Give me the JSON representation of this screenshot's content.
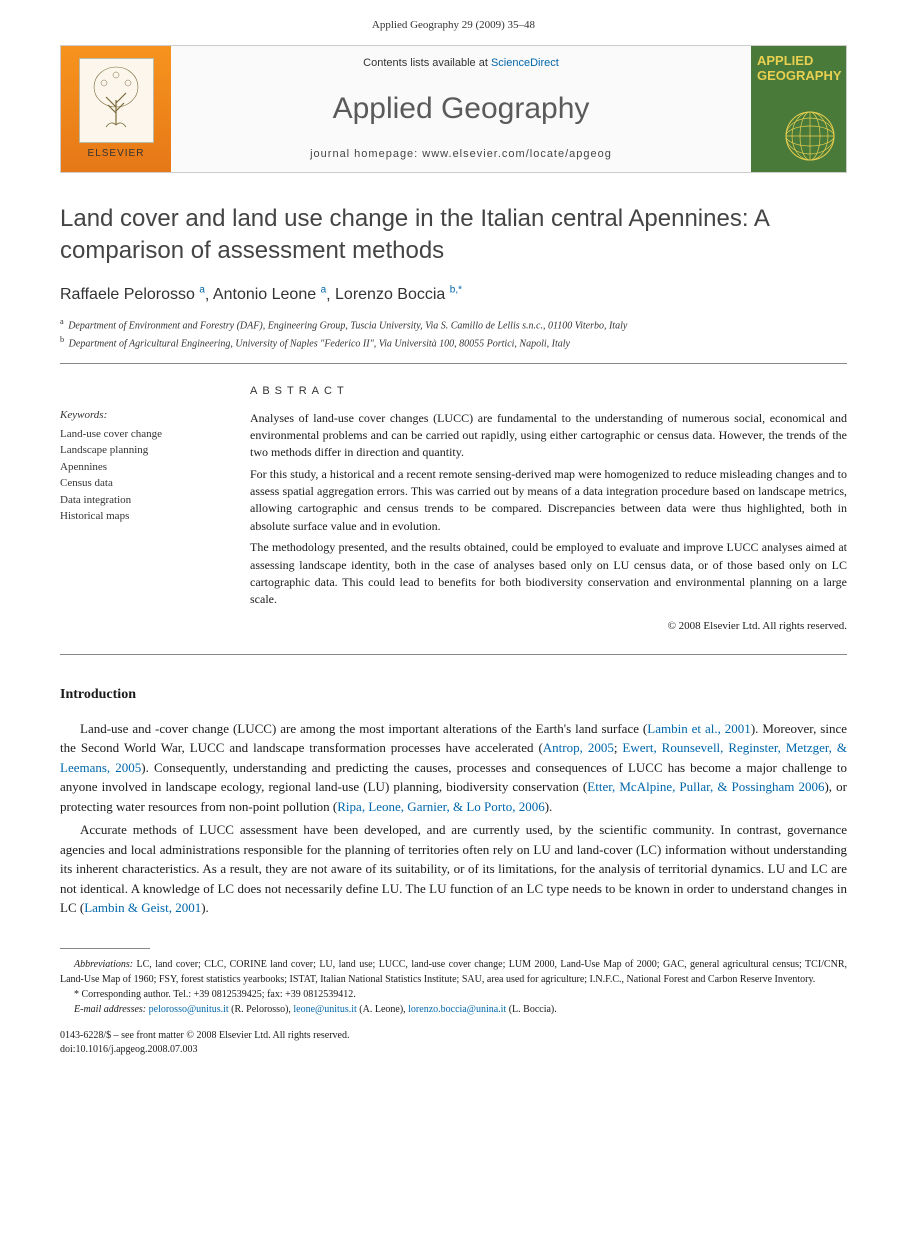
{
  "header": {
    "citation": "Applied Geography 29 (2009) 35–48"
  },
  "banner": {
    "contents_prefix": "Contents lists available at ",
    "contents_link": "ScienceDirect",
    "journal": "Applied Geography",
    "homepage": "journal homepage: www.elsevier.com/locate/apgeog",
    "elsevier_label": "ELSEVIER",
    "cover_line1": "APPLIED",
    "cover_line2": "GEOGRAPHY"
  },
  "article": {
    "title": "Land cover and land use change in the Italian central Apennines: A comparison of assessment methods",
    "authors": [
      {
        "name": "Raffaele Pelorosso",
        "aff": "a"
      },
      {
        "name": "Antonio Leone",
        "aff": "a"
      },
      {
        "name": "Lorenzo Boccia",
        "aff": "b,*"
      }
    ],
    "affiliations": [
      {
        "sup": "a",
        "text": "Department of Environment and Forestry (DAF), Engineering Group, Tuscia University, Via S. Camillo de Lellis s.n.c., 01100 Viterbo, Italy"
      },
      {
        "sup": "b",
        "text": "Department of Agricultural Engineering, University of Naples \"Federico II\", Via Università 100, 80055 Portici, Napoli, Italy"
      }
    ],
    "keywords_label": "Keywords:",
    "keywords": [
      "Land-use cover change",
      "Landscape planning",
      "Apennines",
      "Census data",
      "Data integration",
      "Historical maps"
    ],
    "abstract_label": "ABSTRACT",
    "abstract_paras": [
      "Analyses of land-use cover changes (LUCC) are fundamental to the understanding of numerous social, economical and environmental problems and can be carried out rapidly, using either cartographic or census data. However, the trends of the two methods differ in direction and quantity.",
      "For this study, a historical and a recent remote sensing-derived map were homogenized to reduce misleading changes and to assess spatial aggregation errors. This was carried out by means of a data integration procedure based on landscape metrics, allowing cartographic and census trends to be compared. Discrepancies between data were thus highlighted, both in absolute surface value and in evolution.",
      "The methodology presented, and the results obtained, could be employed to evaluate and improve LUCC analyses aimed at assessing landscape identity, both in the case of analyses based only on LU census data, or of those based only on LC cartographic data. This could lead to benefits for both biodiversity conservation and environmental planning on a large scale."
    ],
    "copyright": "© 2008 Elsevier Ltd. All rights reserved."
  },
  "intro": {
    "heading": "Introduction",
    "paras": [
      {
        "segments": [
          {
            "t": "Land-use and -cover change (LUCC) are among the most important alterations of the Earth's land surface ("
          },
          {
            "t": "Lambin et al., 2001",
            "link": true
          },
          {
            "t": "). Moreover, since the Second World War, LUCC and landscape transformation processes have accelerated ("
          },
          {
            "t": "Antrop, 2005",
            "link": true
          },
          {
            "t": "; "
          },
          {
            "t": "Ewert, Rounsevell, Reginster, Metzger, & Leemans, 2005",
            "link": true
          },
          {
            "t": "). Consequently, understanding and predicting the causes, processes and consequences of LUCC has become a major challenge to anyone involved in landscape ecology, regional land-use (LU) planning, biodiversity conservation ("
          },
          {
            "t": "Etter, McAlpine, Pullar, & Possingham 2006",
            "link": true
          },
          {
            "t": "), or protecting water resources from non-point pollution ("
          },
          {
            "t": "Ripa, Leone, Garnier, & Lo Porto, 2006",
            "link": true
          },
          {
            "t": ")."
          }
        ]
      },
      {
        "segments": [
          {
            "t": "Accurate methods of LUCC assessment have been developed, and are currently used, by the scientific community. In contrast, governance agencies and local administrations responsible for the planning of territories often rely on LU and land-cover (LC) information without understanding its inherent characteristics. As a result, they are not aware of its suitability, or of its limitations, for the analysis of territorial dynamics. LU and LC are not identical. A knowledge of LC does not necessarily define LU. The LU function of an LC type needs to be known in order to understand changes in LC ("
          },
          {
            "t": "Lambin & Geist, 2001",
            "link": true
          },
          {
            "t": ")."
          }
        ]
      }
    ]
  },
  "footnotes": {
    "abbrev_label": "Abbreviations:",
    "abbrev_text": " LC, land cover; CLC, CORINE land cover; LU, land use; LUCC, land-use cover change; LUM 2000, Land-Use Map of 2000; GAC, general agricultural census; TCI/CNR, Land-Use Map of 1960; FSY, forest statistics yearbooks; ISTAT, Italian National Statistics Institute; SAU, area used for agriculture; I.N.F.C., National Forest and Carbon Reserve Inventory.",
    "corresponding": "* Corresponding author. Tel.: +39 0812539425; fax: +39 0812539412.",
    "emails_label": "E-mail addresses:",
    "emails": [
      {
        "addr": "pelorosso@unitus.it",
        "who": " (R. Pelorosso), "
      },
      {
        "addr": "leone@unitus.it",
        "who": " (A. Leone), "
      },
      {
        "addr": "lorenzo.boccia@unina.it",
        "who": " (L. Boccia)."
      }
    ]
  },
  "doi": {
    "line1": "0143-6228/$ – see front matter © 2008 Elsevier Ltd. All rights reserved.",
    "line2": "doi:10.1016/j.apgeog.2008.07.003"
  },
  "colors": {
    "link": "#0066aa",
    "elsevier_orange": "#f7931e",
    "cover_green": "#4a7a3a",
    "cover_gold": "#e8d050"
  }
}
